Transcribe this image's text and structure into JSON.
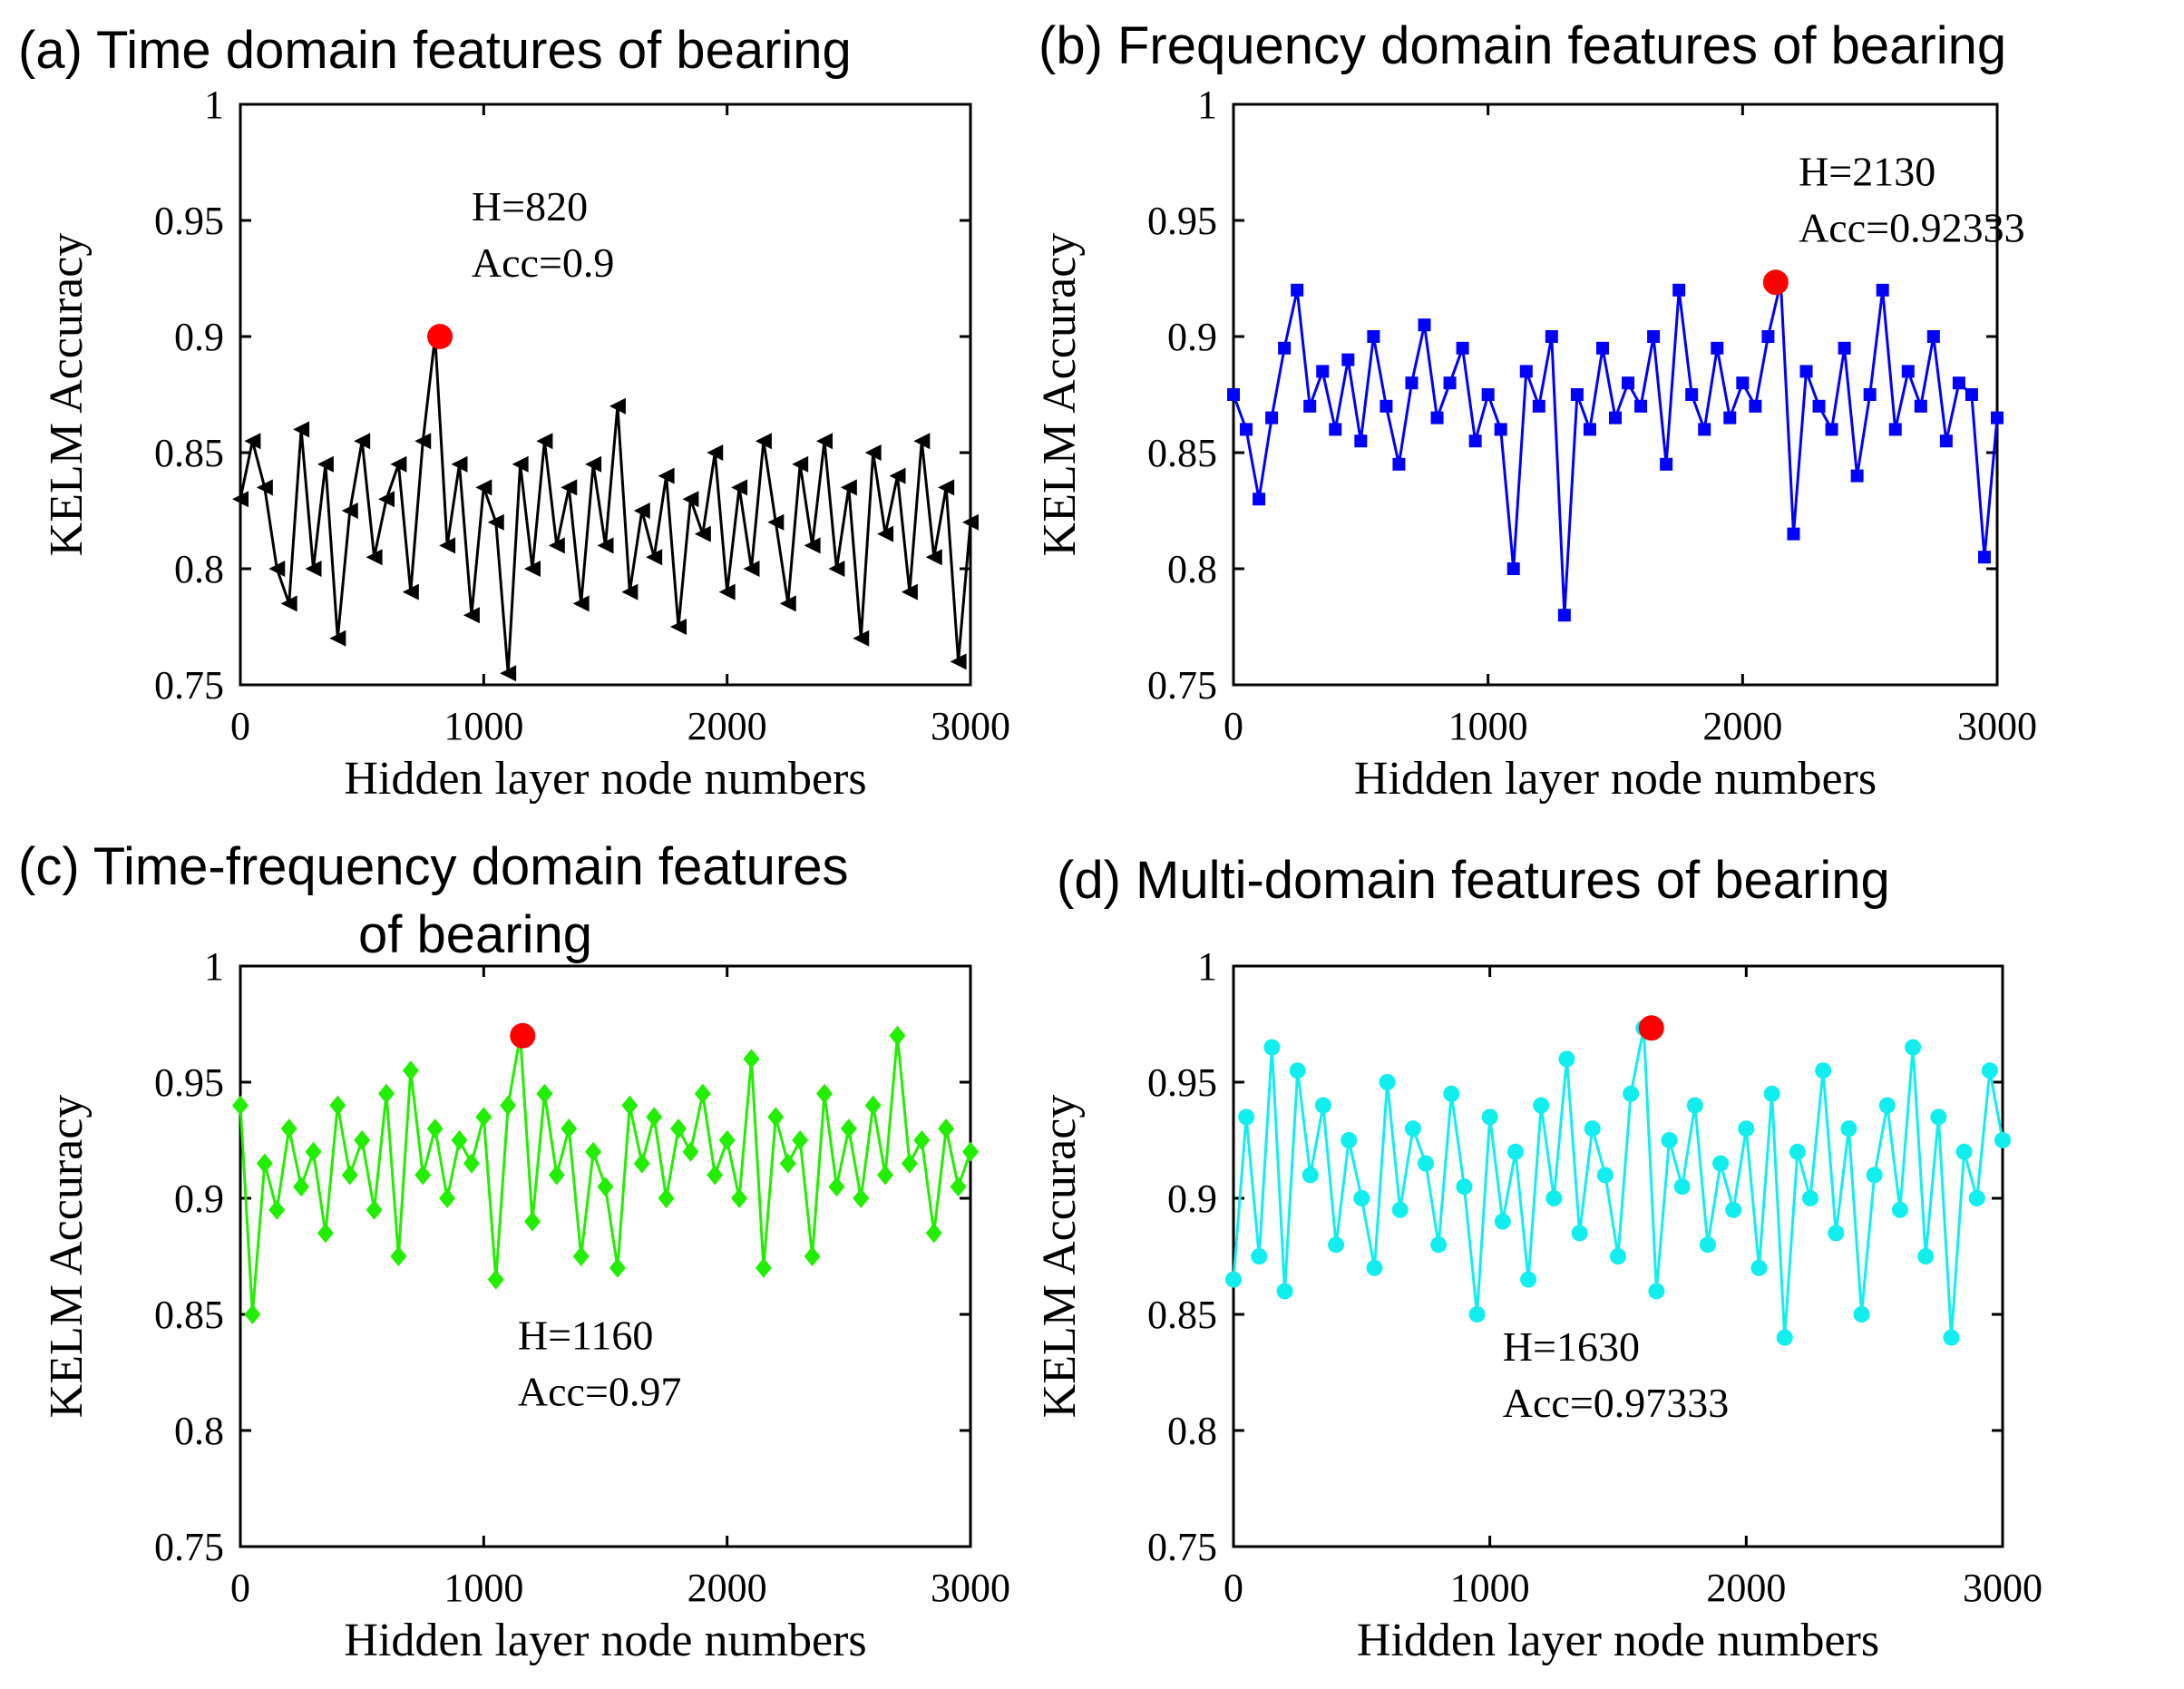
{
  "figure": {
    "max_marker_color": "#ff0000"
  },
  "chart_data": [
    {
      "type": "line",
      "title": "(a) Time domain features of bearing",
      "xlabel": "Hidden layer node numbers",
      "ylabel": "KELM Accuracy",
      "xlim": [
        0,
        3000
      ],
      "ylim": [
        0.75,
        1
      ],
      "xticks": [
        0,
        1000,
        2000,
        3000
      ],
      "yticks": [
        0.75,
        0.8,
        0.85,
        0.9,
        0.95,
        1
      ],
      "ytick_labels": [
        "0.75",
        "0.8",
        "0.85",
        "0.9",
        "0.95",
        "1"
      ],
      "color": "#000000",
      "marker": "triangle-left",
      "annotation": {
        "line1": "H=820",
        "line2": "Acc=0.9",
        "x": 950,
        "y": 0.95
      },
      "best": {
        "x": 820,
        "y": 0.9
      },
      "series": [
        {
          "name": "Time domain",
          "x": [
            0,
            50,
            100,
            150,
            200,
            250,
            300,
            350,
            400,
            450,
            500,
            550,
            600,
            650,
            700,
            750,
            800,
            850,
            900,
            950,
            1000,
            1050,
            1100,
            1150,
            1200,
            1250,
            1300,
            1350,
            1400,
            1450,
            1500,
            1550,
            1600,
            1650,
            1700,
            1750,
            1800,
            1850,
            1900,
            1950,
            2000,
            2050,
            2100,
            2150,
            2200,
            2250,
            2300,
            2350,
            2400,
            2450,
            2500,
            2550,
            2600,
            2650,
            2700,
            2750,
            2800,
            2850,
            2900,
            2950,
            3000
          ],
          "y": [
            0.83,
            0.855,
            0.835,
            0.8,
            0.785,
            0.86,
            0.8,
            0.845,
            0.77,
            0.825,
            0.855,
            0.805,
            0.83,
            0.845,
            0.79,
            0.855,
            0.9,
            0.81,
            0.845,
            0.78,
            0.835,
            0.82,
            0.755,
            0.845,
            0.8,
            0.855,
            0.81,
            0.835,
            0.785,
            0.845,
            0.81,
            0.87,
            0.79,
            0.825,
            0.805,
            0.84,
            0.775,
            0.83,
            0.815,
            0.85,
            0.79,
            0.835,
            0.8,
            0.855,
            0.82,
            0.785,
            0.845,
            0.81,
            0.855,
            0.8,
            0.835,
            0.77,
            0.85,
            0.815,
            0.84,
            0.79,
            0.855,
            0.805,
            0.835,
            0.76,
            0.82
          ]
        }
      ]
    },
    {
      "type": "line",
      "title": "(b) Frequency domain features of bearing",
      "xlabel": "Hidden layer node numbers",
      "ylabel": "KELM Accuracy",
      "xlim": [
        0,
        3000
      ],
      "ylim": [
        0.75,
        1
      ],
      "xticks": [
        0,
        1000,
        2000,
        3000
      ],
      "yticks": [
        0.75,
        0.8,
        0.85,
        0.9,
        0.95,
        1
      ],
      "ytick_labels": [
        "0.75",
        "0.8",
        "0.85",
        "0.9",
        "0.95",
        "1"
      ],
      "color": "#0000ff",
      "marker": "square",
      "annotation": {
        "line1": "H=2130",
        "line2": "Acc=0.92333",
        "x": 2220,
        "y": 0.965
      },
      "best": {
        "x": 2130,
        "y": 0.92333
      },
      "series": [
        {
          "name": "Frequency domain",
          "x": [
            0,
            50,
            100,
            150,
            200,
            250,
            300,
            350,
            400,
            450,
            500,
            550,
            600,
            650,
            700,
            750,
            800,
            850,
            900,
            950,
            1000,
            1050,
            1100,
            1150,
            1200,
            1250,
            1300,
            1350,
            1400,
            1450,
            1500,
            1550,
            1600,
            1650,
            1700,
            1750,
            1800,
            1850,
            1900,
            1950,
            2000,
            2050,
            2100,
            2150,
            2200,
            2250,
            2300,
            2350,
            2400,
            2450,
            2500,
            2550,
            2600,
            2650,
            2700,
            2750,
            2800,
            2850,
            2900,
            2950,
            3000
          ],
          "y": [
            0.875,
            0.86,
            0.83,
            0.865,
            0.895,
            0.92,
            0.87,
            0.885,
            0.86,
            0.89,
            0.855,
            0.9,
            0.87,
            0.845,
            0.88,
            0.905,
            0.865,
            0.88,
            0.895,
            0.855,
            0.875,
            0.86,
            0.8,
            0.885,
            0.87,
            0.9,
            0.78,
            0.875,
            0.86,
            0.895,
            0.865,
            0.88,
            0.87,
            0.9,
            0.845,
            0.92,
            0.875,
            0.86,
            0.895,
            0.865,
            0.88,
            0.87,
            0.9,
            0.92333,
            0.815,
            0.885,
            0.87,
            0.86,
            0.895,
            0.84,
            0.875,
            0.92,
            0.86,
            0.885,
            0.87,
            0.9,
            0.855,
            0.88,
            0.875,
            0.805,
            0.865
          ]
        }
      ]
    },
    {
      "type": "line",
      "title": "(c) Time-frequency domain features",
      "title_line2": "of bearing",
      "xlabel": "Hidden layer node numbers",
      "ylabel": "KELM Accuracy",
      "xlim": [
        0,
        3000
      ],
      "ylim": [
        0.75,
        1
      ],
      "xticks": [
        0,
        1000,
        2000,
        3000
      ],
      "yticks": [
        0.75,
        0.8,
        0.85,
        0.9,
        0.95,
        1
      ],
      "ytick_labels": [
        "0.75",
        "0.8",
        "0.85",
        "0.9",
        "0.95",
        "1"
      ],
      "color": "#22ee00",
      "marker": "diamond",
      "annotation": {
        "line1": "H=1160",
        "line2": "Acc=0.97",
        "x": 1140,
        "y": 0.835
      },
      "best": {
        "x": 1160,
        "y": 0.97
      },
      "series": [
        {
          "name": "Time-frequency domain",
          "x": [
            0,
            50,
            100,
            150,
            200,
            250,
            300,
            350,
            400,
            450,
            500,
            550,
            600,
            650,
            700,
            750,
            800,
            850,
            900,
            950,
            1000,
            1050,
            1100,
            1150,
            1200,
            1250,
            1300,
            1350,
            1400,
            1450,
            1500,
            1550,
            1600,
            1650,
            1700,
            1750,
            1800,
            1850,
            1900,
            1950,
            2000,
            2050,
            2100,
            2150,
            2200,
            2250,
            2300,
            2350,
            2400,
            2450,
            2500,
            2550,
            2600,
            2650,
            2700,
            2750,
            2800,
            2850,
            2900,
            2950,
            3000
          ],
          "y": [
            0.94,
            0.85,
            0.915,
            0.895,
            0.93,
            0.905,
            0.92,
            0.885,
            0.94,
            0.91,
            0.925,
            0.895,
            0.945,
            0.875,
            0.955,
            0.91,
            0.93,
            0.9,
            0.925,
            0.915,
            0.935,
            0.865,
            0.94,
            0.97,
            0.89,
            0.945,
            0.91,
            0.93,
            0.875,
            0.92,
            0.905,
            0.87,
            0.94,
            0.915,
            0.935,
            0.9,
            0.93,
            0.92,
            0.945,
            0.91,
            0.925,
            0.9,
            0.96,
            0.87,
            0.935,
            0.915,
            0.925,
            0.875,
            0.945,
            0.905,
            0.93,
            0.9,
            0.94,
            0.91,
            0.97,
            0.915,
            0.925,
            0.885,
            0.93,
            0.905,
            0.92
          ]
        }
      ]
    },
    {
      "type": "line",
      "title": "(d) Multi-domain features of bearing",
      "xlabel": "Hidden layer node numbers",
      "ylabel": "KELM Accuracy",
      "xlim": [
        0,
        3000
      ],
      "ylim": [
        0.75,
        1
      ],
      "xticks": [
        0,
        1000,
        2000,
        3000
      ],
      "yticks": [
        0.75,
        0.8,
        0.85,
        0.9,
        0.95,
        1
      ],
      "ytick_labels": [
        "0.75",
        "0.8",
        "0.85",
        "0.9",
        "0.95",
        "1"
      ],
      "color": "#11eeee",
      "marker": "circle",
      "annotation": {
        "line1": "H=1630",
        "line2": "Acc=0.97333",
        "x": 1050,
        "y": 0.83
      },
      "best": {
        "x": 1630,
        "y": 0.97333
      },
      "series": [
        {
          "name": "Multi-domain",
          "x": [
            0,
            50,
            100,
            150,
            200,
            250,
            300,
            350,
            400,
            450,
            500,
            550,
            600,
            650,
            700,
            750,
            800,
            850,
            900,
            950,
            1000,
            1050,
            1100,
            1150,
            1200,
            1250,
            1300,
            1350,
            1400,
            1450,
            1500,
            1550,
            1600,
            1650,
            1700,
            1750,
            1800,
            1850,
            1900,
            1950,
            2000,
            2050,
            2100,
            2150,
            2200,
            2250,
            2300,
            2350,
            2400,
            2450,
            2500,
            2550,
            2600,
            2650,
            2700,
            2750,
            2800,
            2850,
            2900,
            2950,
            3000
          ],
          "y": [
            0.865,
            0.935,
            0.875,
            0.965,
            0.86,
            0.955,
            0.91,
            0.94,
            0.88,
            0.925,
            0.9,
            0.87,
            0.95,
            0.895,
            0.93,
            0.915,
            0.88,
            0.945,
            0.905,
            0.85,
            0.935,
            0.89,
            0.92,
            0.865,
            0.94,
            0.9,
            0.96,
            0.885,
            0.93,
            0.91,
            0.875,
            0.945,
            0.97333,
            0.86,
            0.925,
            0.905,
            0.94,
            0.88,
            0.915,
            0.895,
            0.93,
            0.87,
            0.945,
            0.84,
            0.92,
            0.9,
            0.955,
            0.885,
            0.93,
            0.85,
            0.91,
            0.94,
            0.895,
            0.965,
            0.875,
            0.935,
            0.84,
            0.92,
            0.9,
            0.955,
            0.925
          ]
        }
      ]
    }
  ]
}
